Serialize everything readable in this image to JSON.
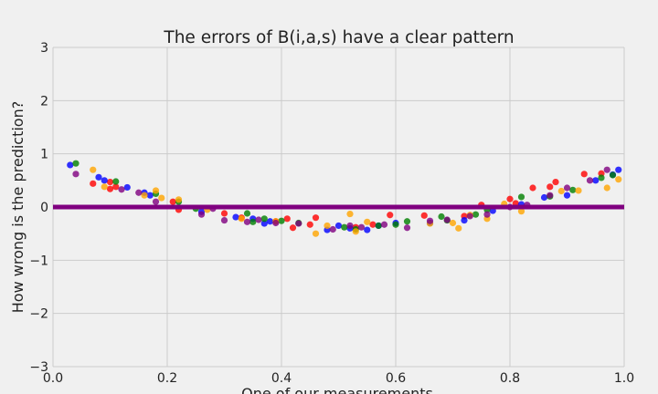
{
  "chart_data": {
    "type": "scatter",
    "title": "The errors of B(i,a,s) have a clear pattern",
    "xlabel": "One of our measurements",
    "ylabel": "How wrong is the prediction?",
    "xlim": [
      0.0,
      1.0
    ],
    "ylim": [
      -3,
      3
    ],
    "x_ticks": [
      "0.0",
      "0.2",
      "0.4",
      "0.6",
      "0.8",
      "1.0"
    ],
    "y_ticks": [
      "−3",
      "−2",
      "−1",
      "0",
      "1",
      "2",
      "3"
    ],
    "grid": true,
    "reference_line": {
      "y": 0,
      "color": "#800080"
    },
    "series": [
      {
        "color": "#ff0000",
        "points": [
          [
            0.07,
            0.44
          ],
          [
            0.1,
            0.47
          ],
          [
            0.1,
            0.34
          ],
          [
            0.11,
            0.38
          ],
          [
            0.21,
            0.1
          ],
          [
            0.22,
            -0.05
          ],
          [
            0.3,
            -0.12
          ],
          [
            0.33,
            -0.2
          ],
          [
            0.39,
            -0.27
          ],
          [
            0.41,
            -0.22
          ],
          [
            0.42,
            -0.39
          ],
          [
            0.45,
            -0.33
          ],
          [
            0.46,
            -0.2
          ],
          [
            0.53,
            -0.38
          ],
          [
            0.56,
            -0.33
          ],
          [
            0.59,
            -0.15
          ],
          [
            0.65,
            -0.16
          ],
          [
            0.72,
            -0.17
          ],
          [
            0.75,
            0.04
          ],
          [
            0.8,
            0.15
          ],
          [
            0.81,
            0.07
          ],
          [
            0.84,
            0.36
          ],
          [
            0.87,
            0.38
          ],
          [
            0.88,
            0.47
          ],
          [
            0.93,
            0.62
          ],
          [
            0.96,
            0.63
          ]
        ]
      },
      {
        "color": "#0000ff",
        "points": [
          [
            0.03,
            0.79
          ],
          [
            0.08,
            0.56
          ],
          [
            0.09,
            0.5
          ],
          [
            0.13,
            0.37
          ],
          [
            0.16,
            0.27
          ],
          [
            0.17,
            0.22
          ],
          [
            0.26,
            -0.09
          ],
          [
            0.32,
            -0.19
          ],
          [
            0.35,
            -0.22
          ],
          [
            0.37,
            -0.31
          ],
          [
            0.38,
            -0.27
          ],
          [
            0.48,
            -0.43
          ],
          [
            0.5,
            -0.35
          ],
          [
            0.52,
            -0.4
          ],
          [
            0.55,
            -0.43
          ],
          [
            0.57,
            -0.35
          ],
          [
            0.6,
            -0.3
          ],
          [
            0.66,
            -0.3
          ],
          [
            0.72,
            -0.25
          ],
          [
            0.77,
            -0.07
          ],
          [
            0.82,
            0.05
          ],
          [
            0.86,
            0.18
          ],
          [
            0.9,
            0.22
          ],
          [
            0.95,
            0.5
          ],
          [
            0.98,
            0.61
          ],
          [
            0.99,
            0.7
          ]
        ]
      },
      {
        "color": "#008000",
        "points": [
          [
            0.04,
            0.82
          ],
          [
            0.11,
            0.48
          ],
          [
            0.18,
            0.25
          ],
          [
            0.22,
            0.1
          ],
          [
            0.25,
            -0.03
          ],
          [
            0.34,
            -0.12
          ],
          [
            0.35,
            -0.28
          ],
          [
            0.37,
            -0.22
          ],
          [
            0.4,
            -0.26
          ],
          [
            0.43,
            -0.3
          ],
          [
            0.51,
            -0.38
          ],
          [
            0.53,
            -0.42
          ],
          [
            0.57,
            -0.35
          ],
          [
            0.6,
            -0.33
          ],
          [
            0.62,
            -0.27
          ],
          [
            0.68,
            -0.18
          ],
          [
            0.69,
            -0.25
          ],
          [
            0.74,
            -0.14
          ],
          [
            0.76,
            -0.05
          ],
          [
            0.82,
            0.19
          ],
          [
            0.87,
            0.2
          ],
          [
            0.91,
            0.32
          ],
          [
            0.96,
            0.55
          ],
          [
            0.98,
            0.6
          ]
        ]
      },
      {
        "color": "#ffa500",
        "points": [
          [
            0.07,
            0.7
          ],
          [
            0.09,
            0.38
          ],
          [
            0.16,
            0.22
          ],
          [
            0.18,
            0.31
          ],
          [
            0.19,
            0.17
          ],
          [
            0.22,
            0.14
          ],
          [
            0.27,
            -0.05
          ],
          [
            0.33,
            -0.22
          ],
          [
            0.39,
            -0.27
          ],
          [
            0.46,
            -0.5
          ],
          [
            0.48,
            -0.35
          ],
          [
            0.52,
            -0.13
          ],
          [
            0.53,
            -0.46
          ],
          [
            0.55,
            -0.28
          ],
          [
            0.66,
            -0.31
          ],
          [
            0.7,
            -0.3
          ],
          [
            0.71,
            -0.4
          ],
          [
            0.73,
            -0.15
          ],
          [
            0.76,
            -0.22
          ],
          [
            0.79,
            0.06
          ],
          [
            0.82,
            -0.08
          ],
          [
            0.89,
            0.3
          ],
          [
            0.92,
            0.31
          ],
          [
            0.97,
            0.36
          ],
          [
            0.99,
            0.52
          ]
        ]
      },
      {
        "color": "#800080",
        "points": [
          [
            0.04,
            0.62
          ],
          [
            0.12,
            0.33
          ],
          [
            0.15,
            0.27
          ],
          [
            0.18,
            0.1
          ],
          [
            0.26,
            -0.14
          ],
          [
            0.28,
            -0.03
          ],
          [
            0.3,
            -0.25
          ],
          [
            0.34,
            -0.28
          ],
          [
            0.36,
            -0.24
          ],
          [
            0.39,
            -0.3
          ],
          [
            0.43,
            -0.31
          ],
          [
            0.49,
            -0.42
          ],
          [
            0.52,
            -0.35
          ],
          [
            0.54,
            -0.38
          ],
          [
            0.58,
            -0.33
          ],
          [
            0.62,
            -0.39
          ],
          [
            0.66,
            -0.26
          ],
          [
            0.69,
            -0.24
          ],
          [
            0.73,
            -0.17
          ],
          [
            0.76,
            -0.14
          ],
          [
            0.8,
            0.0
          ],
          [
            0.83,
            0.04
          ],
          [
            0.87,
            0.22
          ],
          [
            0.9,
            0.36
          ],
          [
            0.94,
            0.5
          ],
          [
            0.97,
            0.7
          ]
        ]
      }
    ]
  }
}
